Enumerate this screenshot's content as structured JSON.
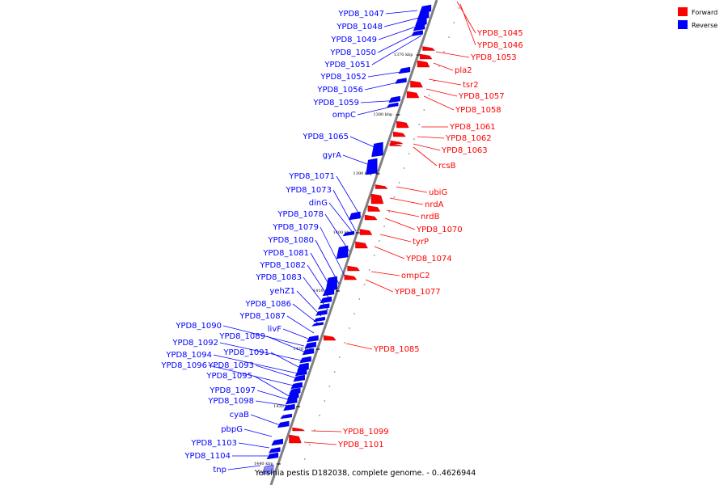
{
  "caption": "Yersinia pestis D182038, complete genome. - 0..4626944",
  "legend": [
    {
      "label": "Forward",
      "color": "#ff0000"
    },
    {
      "label": "Reverse",
      "color": "#0000ff"
    }
  ],
  "colors": {
    "forward": "#ff0000",
    "reverse": "#0000ff",
    "backbone": "#808080"
  },
  "ticks": [
    "1370 kbp",
    "1380 kbp",
    "1390 kbp",
    "1400 kbp",
    "1410 kbp",
    "1420 kbp",
    "1430 kbp",
    "1440 kbp"
  ],
  "reverse_genes": [
    "YPD8_1047",
    "YPD8_1048",
    "YPD8_1049",
    "YPD8_1050",
    "YPD8_1051",
    "YPD8_1052",
    "YPD8_1056",
    "YPD8_1059",
    "ompC",
    "YPD8_1065",
    "gyrA",
    "YPD8_1071",
    "YPD8_1073",
    "dinG",
    "YPD8_1078",
    "YPD8_1079",
    "YPD8_1080",
    "YPD8_1081",
    "YPD8_1082",
    "YPD8_1083",
    "yehZ1",
    "YPD8_1086",
    "YPD8_1087",
    "livF",
    "YPD8_1090",
    "YPD8_1089",
    "YPD8_1092",
    "YPD8_1091",
    "YPD8_1094",
    "YPD8_1093",
    "YPD8_1096",
    "YPD8_1095",
    "YPD8_1097",
    "YPD8_1098",
    "cyaB",
    "pbpG",
    "YPD8_1103",
    "YPD8_1104",
    "tnp"
  ],
  "forward_genes": [
    "YPD8_1045",
    "YPD8_1046",
    "YPD8_1053",
    "pla2",
    "tsr2",
    "YPD8_1057",
    "YPD8_1058",
    "YPD8_1061",
    "YPD8_1062",
    "YPD8_1063",
    "rcsB",
    "ubiG",
    "nrdA",
    "nrdB",
    "YPD8_1070",
    "tyrP",
    "YPD8_1074",
    "ompC2",
    "YPD8_1077",
    "YPD8_1085",
    "YPD8_1099",
    "YPD8_1101"
  ]
}
